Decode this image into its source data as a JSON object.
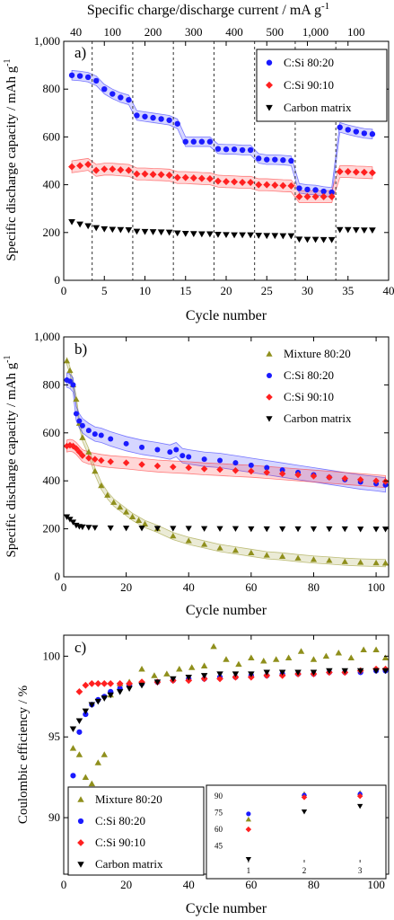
{
  "chart_data": [
    {
      "panel": "a)",
      "type": "scatter",
      "xlabel": "Cycle number",
      "ylabel": "Specific discharge capacity / mAh g",
      "ylabel_sup": "-1",
      "top_axis_label": "Specific charge/discharge current / mA g",
      "top_axis_sup": "-1",
      "top_ticks": [
        "40",
        "100",
        "200",
        "300",
        "400",
        "500",
        "1,000",
        "100"
      ],
      "segment_boundaries": [
        3.5,
        8.5,
        13.5,
        18.5,
        23.5,
        28.5,
        33.5
      ],
      "xlim": [
        0,
        40
      ],
      "ylim": [
        0,
        1000
      ],
      "xticks": [
        0,
        5,
        10,
        15,
        20,
        25,
        30,
        35,
        40
      ],
      "yticks": [
        0,
        200,
        400,
        600,
        800,
        1000
      ],
      "ytick_labels": [
        "0",
        "200",
        "400",
        "600",
        "800",
        "1,000"
      ],
      "legend_position": "top-right",
      "series": [
        {
          "name": "C:Si 80:20",
          "color": "#1a1aff",
          "marker": "circle",
          "band": 20,
          "x": [
            1,
            2,
            3,
            4,
            5,
            6,
            7,
            8,
            9,
            10,
            11,
            12,
            13,
            14,
            15,
            16,
            17,
            18,
            19,
            20,
            21,
            22,
            23,
            24,
            25,
            26,
            27,
            28,
            29,
            30,
            31,
            32,
            33,
            34,
            35,
            36,
            37,
            38
          ],
          "y": [
            858,
            855,
            850,
            835,
            800,
            780,
            765,
            755,
            690,
            685,
            680,
            675,
            670,
            655,
            580,
            580,
            580,
            580,
            550,
            548,
            548,
            545,
            545,
            510,
            505,
            505,
            503,
            500,
            385,
            380,
            378,
            372,
            368,
            640,
            630,
            622,
            615,
            612
          ]
        },
        {
          "name": "C:Si 90:10",
          "color": "#ff2020",
          "marker": "diamond",
          "band": 25,
          "x": [
            1,
            2,
            3,
            4,
            5,
            6,
            7,
            8,
            9,
            10,
            11,
            12,
            13,
            14,
            15,
            16,
            17,
            18,
            19,
            20,
            21,
            22,
            23,
            24,
            25,
            26,
            27,
            28,
            29,
            30,
            31,
            32,
            33,
            34,
            35,
            36,
            37,
            38
          ],
          "y": [
            475,
            480,
            485,
            460,
            465,
            465,
            462,
            460,
            445,
            445,
            443,
            442,
            440,
            430,
            430,
            428,
            426,
            425,
            415,
            413,
            412,
            410,
            410,
            400,
            400,
            398,
            396,
            395,
            350,
            350,
            350,
            350,
            350,
            455,
            455,
            453,
            452,
            450
          ]
        },
        {
          "name": "Carbon matrix",
          "color": "#000000",
          "marker": "triangle-down",
          "band": 0,
          "x": [
            1,
            2,
            3,
            4,
            5,
            6,
            7,
            8,
            9,
            10,
            11,
            12,
            13,
            14,
            15,
            16,
            17,
            18,
            19,
            20,
            21,
            22,
            23,
            24,
            25,
            26,
            27,
            28,
            29,
            30,
            31,
            32,
            33,
            34,
            35,
            36,
            37,
            38
          ],
          "y": [
            245,
            235,
            228,
            220,
            215,
            213,
            212,
            211,
            205,
            204,
            203,
            202,
            201,
            198,
            196,
            195,
            194,
            194,
            192,
            191,
            190,
            190,
            190,
            188,
            187,
            187,
            186,
            186,
            172,
            171,
            171,
            170,
            170,
            212,
            212,
            211,
            210,
            210
          ]
        }
      ]
    },
    {
      "panel": "b)",
      "type": "scatter",
      "xlabel": "Cycle number",
      "ylabel": "Specific discharge capacity / mAh g",
      "ylabel_sup": "-1",
      "xlim": [
        0,
        104
      ],
      "ylim": [
        0,
        1000
      ],
      "xticks": [
        0,
        20,
        40,
        60,
        80,
        100
      ],
      "yticks": [
        0,
        200,
        400,
        600,
        800,
        1000
      ],
      "ytick_labels": [
        "0",
        "200",
        "400",
        "600",
        "800",
        "1,000"
      ],
      "legend_position": "top-right",
      "series": [
        {
          "name": "Mixture 80:20",
          "color": "#8f8f1c",
          "marker": "triangle-up",
          "band": 15,
          "x": [
            1,
            2,
            3,
            4,
            5,
            6,
            8,
            10,
            12,
            14,
            16,
            18,
            20,
            22,
            24,
            26,
            30,
            35,
            40,
            45,
            50,
            55,
            60,
            65,
            70,
            75,
            80,
            85,
            90,
            95,
            100,
            103
          ],
          "y": [
            900,
            860,
            800,
            740,
            640,
            580,
            520,
            440,
            380,
            340,
            310,
            290,
            270,
            250,
            235,
            220,
            200,
            170,
            150,
            135,
            120,
            110,
            100,
            90,
            85,
            78,
            72,
            68,
            63,
            60,
            58,
            57
          ]
        },
        {
          "name": "C:Si 80:20",
          "color": "#1a1aff",
          "marker": "circle",
          "band": 30,
          "x": [
            1,
            2,
            3,
            4,
            5,
            6,
            8,
            10,
            12,
            15,
            20,
            25,
            30,
            34,
            36,
            38,
            40,
            45,
            50,
            55,
            60,
            65,
            70,
            75,
            80,
            85,
            90,
            95,
            100,
            103
          ],
          "y": [
            820,
            815,
            800,
            680,
            650,
            630,
            610,
            595,
            590,
            575,
            555,
            540,
            530,
            520,
            530,
            505,
            500,
            490,
            485,
            475,
            465,
            455,
            445,
            435,
            425,
            415,
            405,
            395,
            388,
            383
          ]
        },
        {
          "name": "C:Si 90:10",
          "color": "#ff2020",
          "marker": "diamond",
          "band": 25,
          "x": [
            1,
            2,
            3,
            4,
            5,
            6,
            8,
            10,
            12,
            15,
            20,
            25,
            30,
            35,
            40,
            45,
            50,
            55,
            60,
            65,
            70,
            75,
            80,
            85,
            90,
            95,
            100,
            103
          ],
          "y": [
            545,
            548,
            545,
            535,
            520,
            505,
            495,
            490,
            485,
            480,
            475,
            468,
            462,
            458,
            455,
            450,
            447,
            443,
            440,
            435,
            430,
            425,
            420,
            415,
            410,
            405,
            400,
            397
          ]
        },
        {
          "name": "Carbon matrix",
          "color": "#000000",
          "marker": "triangle-down",
          "band": 0,
          "x": [
            1,
            2,
            3,
            4,
            5,
            6,
            8,
            10,
            15,
            20,
            25,
            30,
            35,
            40,
            45,
            50,
            55,
            60,
            65,
            70,
            75,
            80,
            85,
            90,
            95,
            100,
            103
          ],
          "y": [
            250,
            240,
            228,
            215,
            210,
            208,
            206,
            205,
            204,
            203,
            203,
            202,
            202,
            202,
            201,
            201,
            201,
            200,
            200,
            200,
            200,
            200,
            200,
            200,
            199,
            199,
            199
          ]
        }
      ]
    },
    {
      "panel": "c)",
      "type": "scatter",
      "xlabel": "Cycle number",
      "ylabel": "Coulombic efficiency / %",
      "xlim": [
        0,
        104
      ],
      "ylim": [
        86.5,
        101.3
      ],
      "xticks": [
        0,
        20,
        40,
        60,
        80,
        100
      ],
      "yticks": [
        90,
        95,
        100
      ],
      "legend_position": "bottom-left",
      "series": [
        {
          "name": "Mixture 80:20",
          "color": "#8f8f1c",
          "marker": "triangle-up",
          "x": [
            3,
            5,
            7,
            9,
            11,
            13,
            15,
            18,
            21,
            25,
            29,
            33,
            37,
            41,
            45,
            48,
            52,
            56,
            60,
            64,
            68,
            72,
            76,
            80,
            84,
            88,
            92,
            96,
            100,
            103
          ],
          "y": [
            94.3,
            93.9,
            92.5,
            92.1,
            93.4,
            93.9,
            97.6,
            98.3,
            98.4,
            99.2,
            98.8,
            98.9,
            99.2,
            99.3,
            99.4,
            100.6,
            99.8,
            99.5,
            99.9,
            99.7,
            99.8,
            99.9,
            100.3,
            99.8,
            100.0,
            100.2,
            99.9,
            100.4,
            100.4,
            99.9
          ]
        },
        {
          "name": "C:Si 80:20",
          "color": "#1a1aff",
          "marker": "circle",
          "x": [
            3,
            5,
            7,
            9,
            11,
            13,
            15,
            18,
            21,
            25,
            30,
            35,
            40,
            45,
            50,
            55,
            60,
            65,
            70,
            75,
            80,
            85,
            90,
            95,
            100,
            103
          ],
          "y": [
            92.6,
            95.3,
            96.4,
            97.0,
            97.3,
            97.5,
            97.8,
            98.0,
            98.2,
            98.3,
            98.4,
            98.5,
            98.6,
            98.6,
            98.7,
            98.7,
            98.8,
            98.8,
            98.9,
            98.9,
            98.9,
            99.0,
            99.0,
            99.0,
            99.1,
            99.1
          ]
        },
        {
          "name": "C:Si 90:10",
          "color": "#ff2020",
          "marker": "diamond",
          "x": [
            3,
            5,
            7,
            9,
            11,
            13,
            15,
            18,
            21,
            25,
            30,
            35,
            40,
            45,
            50,
            55,
            60,
            65,
            70,
            75,
            80,
            85,
            90,
            95,
            100,
            103
          ],
          "y": [
            90.8,
            97.8,
            98.2,
            98.3,
            98.3,
            98.3,
            98.3,
            98.3,
            98.3,
            98.4,
            98.4,
            98.5,
            98.5,
            98.6,
            98.6,
            98.7,
            98.7,
            98.8,
            98.8,
            98.9,
            98.9,
            99.0,
            99.0,
            99.1,
            99.2,
            99.2
          ]
        },
        {
          "name": "Carbon matrix",
          "color": "#000000",
          "marker": "triangle-down",
          "x": [
            3,
            5,
            7,
            9,
            11,
            13,
            15,
            18,
            21,
            25,
            30,
            35,
            40,
            45,
            50,
            55,
            60,
            65,
            70,
            75,
            80,
            85,
            90,
            95,
            100,
            103
          ],
          "y": [
            95.5,
            96.0,
            96.6,
            97.0,
            97.2,
            97.4,
            97.6,
            97.8,
            98.0,
            98.2,
            98.4,
            98.6,
            98.7,
            98.8,
            98.9,
            98.9,
            98.9,
            99.0,
            99.0,
            99.0,
            99.0,
            99.1,
            99.1,
            99.1,
            99.1,
            99.1
          ]
        }
      ],
      "inset": {
        "xticks": [
          1,
          2,
          3
        ],
        "yticks": [
          45,
          60,
          75,
          90
        ],
        "ylim": [
          30,
          95
        ],
        "series": [
          {
            "name": "Mixture 80:20",
            "color": "#8f8f1c",
            "marker": "triangle-up",
            "x": [
              1,
              2,
              3
            ],
            "y": [
              69,
              92,
              93
            ]
          },
          {
            "name": "C:Si 80:20",
            "color": "#1a1aff",
            "marker": "circle",
            "x": [
              1,
              2,
              3
            ],
            "y": [
              74,
              91,
              92
            ]
          },
          {
            "name": "C:Si 90:10",
            "color": "#ff2020",
            "marker": "diamond",
            "x": [
              1,
              2,
              3
            ],
            "y": [
              60,
              89,
              90
            ]
          },
          {
            "name": "Carbon matrix",
            "color": "#000000",
            "marker": "triangle-down",
            "x": [
              1,
              2,
              3
            ],
            "y": [
              33,
              76,
              81
            ]
          }
        ]
      }
    }
  ]
}
